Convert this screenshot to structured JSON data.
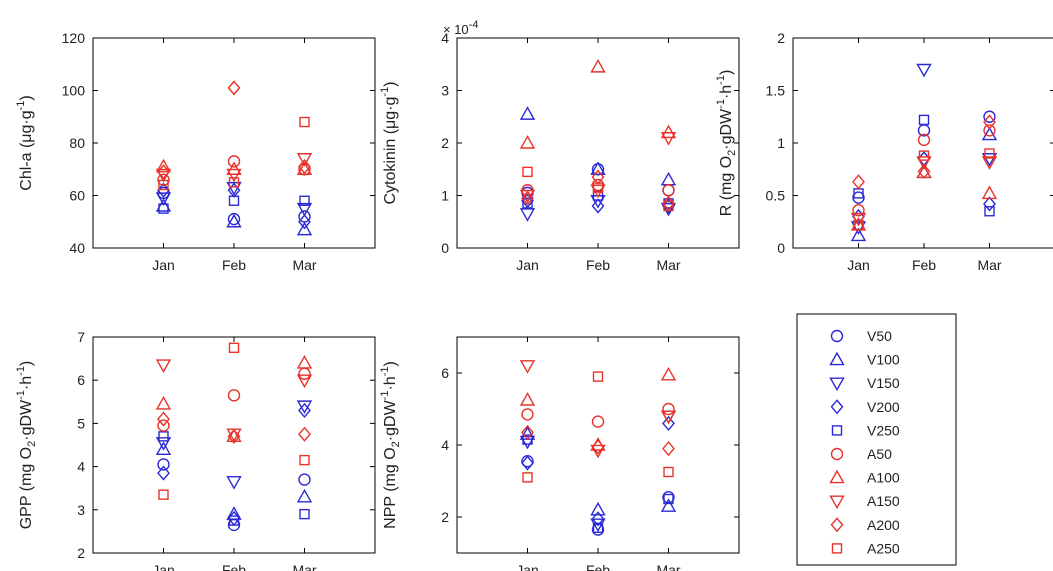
{
  "colors": {
    "V": "#2a2ad6",
    "A": "#e8322a",
    "axis": "#000000"
  },
  "marker_by_suffix": {
    "50": "circle",
    "100": "triangle-up",
    "150": "triangle-down",
    "200": "diamond",
    "250": "square"
  },
  "legend": {
    "entries": [
      {
        "label": "V50",
        "color": "#2a2ad6",
        "marker": "circle"
      },
      {
        "label": "V100",
        "color": "#2a2ad6",
        "marker": "triangle-up"
      },
      {
        "label": "V150",
        "color": "#2a2ad6",
        "marker": "triangle-down"
      },
      {
        "label": "V200",
        "color": "#2a2ad6",
        "marker": "diamond"
      },
      {
        "label": "V250",
        "color": "#2a2ad6",
        "marker": "square"
      },
      {
        "label": "A50",
        "color": "#e8322a",
        "marker": "circle"
      },
      {
        "label": "A100",
        "color": "#e8322a",
        "marker": "triangle-up"
      },
      {
        "label": "A150",
        "color": "#e8322a",
        "marker": "triangle-down"
      },
      {
        "label": "A200",
        "color": "#e8322a",
        "marker": "diamond"
      },
      {
        "label": "A250",
        "color": "#e8322a",
        "marker": "square"
      }
    ]
  },
  "chart_data": [
    {
      "type": "scatter",
      "id": "chla",
      "ylabel_main": "Chl-a (μg·g",
      "ylabel_sup": "-1",
      "ylabel_tail": ")",
      "exponent": "",
      "categories": [
        "Jan",
        "Feb",
        "Mar"
      ],
      "ylim": [
        40,
        120
      ],
      "yticks": [
        40,
        60,
        80,
        100,
        120
      ],
      "ytick_labels": [
        "40",
        "60",
        "80",
        "100",
        "120"
      ],
      "grid": false,
      "series": [
        {
          "name": "V50",
          "values": [
            61,
            51,
            52
          ]
        },
        {
          "name": "V100",
          "values": [
            56,
            50,
            47
          ]
        },
        {
          "name": "V150",
          "values": [
            59,
            63,
            55
          ]
        },
        {
          "name": "V200",
          "values": [
            62,
            62,
            50
          ]
        },
        {
          "name": "V250",
          "values": [
            55,
            58,
            58
          ]
        },
        {
          "name": "A50",
          "values": [
            66,
            73,
            70
          ]
        },
        {
          "name": "A100",
          "values": [
            71,
            70,
            70
          ]
        },
        {
          "name": "A150",
          "values": [
            68,
            68,
            74
          ]
        },
        {
          "name": "A200",
          "values": [
            69,
            101,
            71
          ]
        },
        {
          "name": "A250",
          "values": [
            64,
            65,
            88
          ]
        }
      ]
    },
    {
      "type": "scatter",
      "id": "cytokinin",
      "ylabel_main": "Cytokinin (μg·g",
      "ylabel_sup": "-1",
      "ylabel_tail": ")",
      "exponent": "× 10",
      "exponent_sup": "-4",
      "categories": [
        "Jan",
        "Feb",
        "Mar"
      ],
      "ylim": [
        0,
        4
      ],
      "yticks": [
        0,
        1,
        2,
        3,
        4
      ],
      "ytick_labels": [
        "0",
        "1",
        "2",
        "3",
        "4"
      ],
      "grid": false,
      "series": [
        {
          "name": "V50",
          "values": [
            1.05,
            1.5,
            1.1
          ]
        },
        {
          "name": "V100",
          "values": [
            2.55,
            1.5,
            1.3
          ]
        },
        {
          "name": "V150",
          "values": [
            0.65,
            0.9,
            0.75
          ]
        },
        {
          "name": "V200",
          "values": [
            0.9,
            0.8,
            0.8
          ]
        },
        {
          "name": "V250",
          "values": [
            0.85,
            1.0,
            0.85
          ]
        },
        {
          "name": "A50",
          "values": [
            1.1,
            1.2,
            1.1
          ]
        },
        {
          "name": "A100",
          "values": [
            2.0,
            3.45,
            2.2
          ]
        },
        {
          "name": "A150",
          "values": [
            1.0,
            1.1,
            2.1
          ]
        },
        {
          "name": "A200",
          "values": [
            0.95,
            1.35,
            0.85
          ]
        },
        {
          "name": "A250",
          "values": [
            1.45,
            1.15,
            0.8
          ]
        }
      ]
    },
    {
      "type": "scatter",
      "id": "R",
      "ylabel_main": "R (mg O",
      "ylabel_sub": "2",
      "ylabel_mid": "·gDW",
      "ylabel_sup": "-1",
      "ylabel_mid2": "·h",
      "ylabel_sup2": "-1",
      "ylabel_tail": ")",
      "exponent": "",
      "categories": [
        "Jan",
        "Feb",
        "Mar"
      ],
      "ylim": [
        0,
        2
      ],
      "yticks": [
        0,
        0.5,
        1,
        1.5,
        2
      ],
      "ytick_labels": [
        "0",
        "0.5",
        "1",
        "1.5",
        "2"
      ],
      "grid": false,
      "series": [
        {
          "name": "V50",
          "values": [
            0.48,
            1.12,
            1.25
          ]
        },
        {
          "name": "V100",
          "values": [
            0.12,
            0.72,
            1.08
          ]
        },
        {
          "name": "V150",
          "values": [
            0.2,
            1.7,
            0.85
          ]
        },
        {
          "name": "V200",
          "values": [
            0.3,
            0.85,
            0.42
          ]
        },
        {
          "name": "V250",
          "values": [
            0.52,
            1.22,
            0.35
          ]
        },
        {
          "name": "A50",
          "values": [
            0.36,
            1.03,
            1.12
          ]
        },
        {
          "name": "A100",
          "values": [
            0.22,
            0.72,
            0.52
          ]
        },
        {
          "name": "A150",
          "values": [
            0.28,
            0.82,
            0.82
          ]
        },
        {
          "name": "A200",
          "values": [
            0.63,
            0.73,
            1.2
          ]
        },
        {
          "name": "A250",
          "values": [
            0.22,
            0.88,
            0.9
          ]
        }
      ]
    },
    {
      "type": "scatter",
      "id": "GPP",
      "ylabel_main": "GPP (mg O",
      "ylabel_sub": "2",
      "ylabel_mid": "·gDW",
      "ylabel_sup": "-1",
      "ylabel_mid2": "·h",
      "ylabel_sup2": "-1",
      "ylabel_tail": ")",
      "exponent": "",
      "categories": [
        "Jan",
        "Feb",
        "Mar"
      ],
      "ylim": [
        2,
        7
      ],
      "yticks": [
        2,
        3,
        4,
        5,
        6,
        7
      ],
      "ytick_labels": [
        "2",
        "3",
        "4",
        "5",
        "6",
        "7"
      ],
      "grid": false,
      "series": [
        {
          "name": "V50",
          "values": [
            4.05,
            2.65,
            3.7
          ]
        },
        {
          "name": "V100",
          "values": [
            4.4,
            2.9,
            3.3
          ]
        },
        {
          "name": "V150",
          "values": [
            4.55,
            3.65,
            5.4
          ]
        },
        {
          "name": "V200",
          "values": [
            3.85,
            2.8,
            5.3
          ]
        },
        {
          "name": "V250",
          "values": [
            4.7,
            2.75,
            2.9
          ]
        },
        {
          "name": "A50",
          "values": [
            4.95,
            5.65,
            6.15
          ]
        },
        {
          "name": "A100",
          "values": [
            5.45,
            4.7,
            6.4
          ]
        },
        {
          "name": "A150",
          "values": [
            6.35,
            4.75,
            6.0
          ]
        },
        {
          "name": "A200",
          "values": [
            5.1,
            4.7,
            4.75
          ]
        },
        {
          "name": "A250",
          "values": [
            3.35,
            6.75,
            4.15
          ]
        }
      ]
    },
    {
      "type": "scatter",
      "id": "NPP",
      "ylabel_main": "NPP (mg O",
      "ylabel_sub": "2",
      "ylabel_mid": "·gDW",
      "ylabel_sup": "-1",
      "ylabel_mid2": "·h",
      "ylabel_sup2": "-1",
      "ylabel_tail": ")",
      "exponent": "",
      "categories": [
        "Jan",
        "Feb",
        "Mar"
      ],
      "ylim": [
        1,
        7
      ],
      "yticks": [
        2,
        4,
        6
      ],
      "ytick_labels": [
        "2",
        "4",
        "6"
      ],
      "grid": false,
      "series": [
        {
          "name": "V50",
          "values": [
            3.55,
            1.65,
            2.55
          ]
        },
        {
          "name": "V100",
          "values": [
            4.3,
            2.2,
            2.3
          ]
        },
        {
          "name": "V150",
          "values": [
            4.1,
            1.8,
            4.8
          ]
        },
        {
          "name": "V200",
          "values": [
            3.5,
            1.95,
            4.6
          ]
        },
        {
          "name": "V250",
          "values": [
            4.15,
            1.7,
            2.5
          ]
        },
        {
          "name": "A50",
          "values": [
            4.85,
            4.65,
            5.0
          ]
        },
        {
          "name": "A100",
          "values": [
            5.25,
            4.0,
            5.95
          ]
        },
        {
          "name": "A150",
          "values": [
            6.2,
            3.85,
            4.8
          ]
        },
        {
          "name": "A200",
          "values": [
            4.35,
            3.95,
            3.9
          ]
        },
        {
          "name": "A250",
          "values": [
            3.1,
            5.9,
            3.25
          ]
        }
      ]
    }
  ]
}
